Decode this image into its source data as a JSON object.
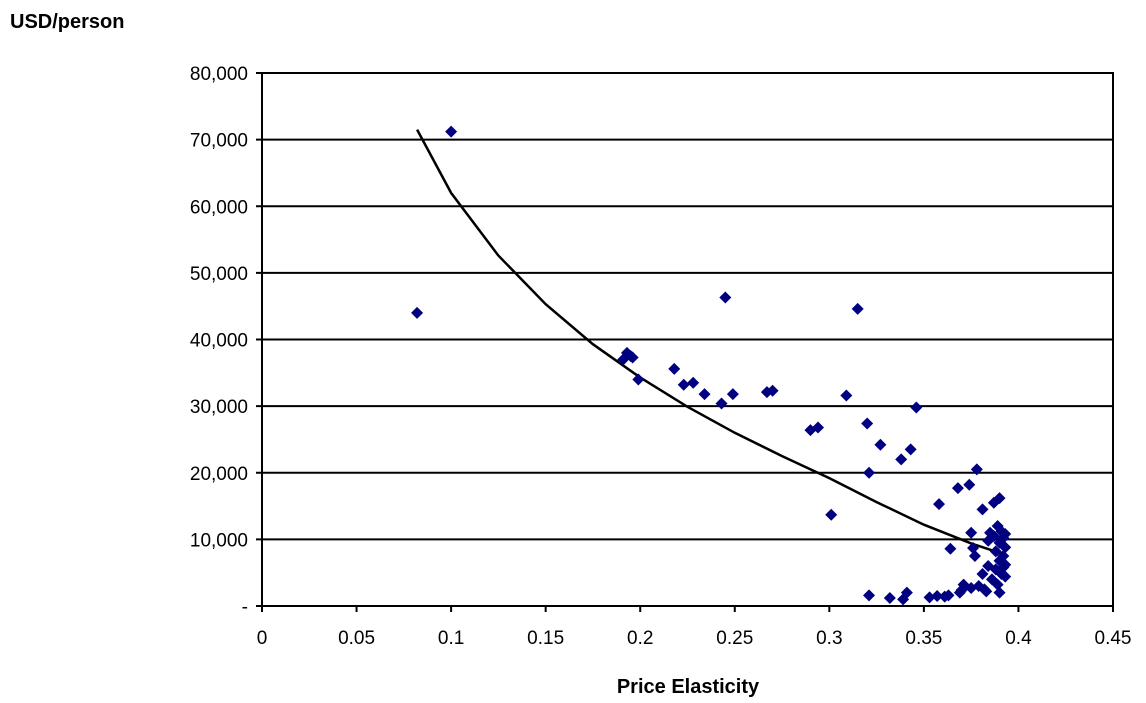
{
  "chart_data": {
    "type": "scatter",
    "title": "",
    "xlabel": "Price Elasticity",
    "ylabel": "USD/person",
    "xlim": [
      0,
      0.45
    ],
    "ylim": [
      0,
      80000
    ],
    "x_ticks": [
      0,
      0.05,
      0.1,
      0.15,
      0.2,
      0.25,
      0.3,
      0.35,
      0.4,
      0.45
    ],
    "x_tick_labels": [
      "0",
      "0.05",
      "0.1",
      "0.15",
      "0.2",
      "0.25",
      "0.3",
      "0.35",
      "0.4",
      "0.45"
    ],
    "y_ticks": [
      0,
      10000,
      20000,
      30000,
      40000,
      50000,
      60000,
      70000,
      80000
    ],
    "y_tick_labels": [
      "-",
      "10,000",
      "20,000",
      "30,000",
      "40,000",
      "50,000",
      "60,000",
      "70,000",
      "80,000"
    ],
    "grid": "horizontal",
    "legend": "none",
    "marker_color": "#000080",
    "trendline_color": "#000000",
    "series": [
      {
        "marker": "diamond",
        "points": [
          [
            0.082,
            44000
          ],
          [
            0.1,
            71200
          ],
          [
            0.191,
            37000
          ],
          [
            0.193,
            38000
          ],
          [
            0.195,
            37500
          ],
          [
            0.196,
            37300
          ],
          [
            0.199,
            34000
          ],
          [
            0.218,
            35600
          ],
          [
            0.223,
            33200
          ],
          [
            0.228,
            33500
          ],
          [
            0.234,
            31800
          ],
          [
            0.243,
            30400
          ],
          [
            0.245,
            46300
          ],
          [
            0.249,
            31800
          ],
          [
            0.267,
            32100
          ],
          [
            0.27,
            32300
          ],
          [
            0.29,
            26400
          ],
          [
            0.294,
            26800
          ],
          [
            0.301,
            13700
          ],
          [
            0.309,
            31600
          ],
          [
            0.315,
            44600
          ],
          [
            0.32,
            27400
          ],
          [
            0.321,
            20000
          ],
          [
            0.321,
            1600
          ],
          [
            0.327,
            24200
          ],
          [
            0.332,
            1200
          ],
          [
            0.338,
            22000
          ],
          [
            0.339,
            1000
          ],
          [
            0.341,
            2000
          ],
          [
            0.343,
            23500
          ],
          [
            0.346,
            29800
          ],
          [
            0.353,
            1300
          ],
          [
            0.357,
            1500
          ],
          [
            0.358,
            15300
          ],
          [
            0.361,
            1400
          ],
          [
            0.363,
            1600
          ],
          [
            0.364,
            8600
          ],
          [
            0.368,
            17700
          ],
          [
            0.369,
            2000
          ],
          [
            0.37,
            2400
          ],
          [
            0.371,
            3200
          ],
          [
            0.374,
            18200
          ],
          [
            0.375,
            2700
          ],
          [
            0.375,
            11000
          ],
          [
            0.376,
            8700
          ],
          [
            0.377,
            7500
          ],
          [
            0.378,
            20500
          ],
          [
            0.379,
            3000
          ],
          [
            0.381,
            14500
          ],
          [
            0.381,
            4800
          ],
          [
            0.382,
            2500
          ],
          [
            0.383,
            2200
          ],
          [
            0.384,
            9800
          ],
          [
            0.384,
            6000
          ],
          [
            0.385,
            11000
          ],
          [
            0.386,
            4000
          ],
          [
            0.387,
            15500
          ],
          [
            0.387,
            10500
          ],
          [
            0.388,
            8200
          ],
          [
            0.388,
            5500
          ],
          [
            0.389,
            12000
          ],
          [
            0.389,
            3200
          ],
          [
            0.39,
            16200
          ],
          [
            0.39,
            9500
          ],
          [
            0.39,
            6800
          ],
          [
            0.39,
            2000
          ],
          [
            0.391,
            11200
          ],
          [
            0.391,
            4800
          ],
          [
            0.392,
            10200
          ],
          [
            0.392,
            7500
          ],
          [
            0.392,
            5800
          ],
          [
            0.393,
            10800
          ],
          [
            0.393,
            8800
          ],
          [
            0.393,
            4400
          ],
          [
            0.393,
            6200
          ]
        ]
      }
    ],
    "trendline": {
      "points": [
        [
          0.082,
          71500
        ],
        [
          0.1,
          62000
        ],
        [
          0.125,
          52600
        ],
        [
          0.15,
          45300
        ],
        [
          0.175,
          39300
        ],
        [
          0.2,
          34300
        ],
        [
          0.225,
          29900
        ],
        [
          0.25,
          26000
        ],
        [
          0.275,
          22500
        ],
        [
          0.3,
          19200
        ],
        [
          0.325,
          15600
        ],
        [
          0.35,
          12200
        ],
        [
          0.375,
          9400
        ],
        [
          0.393,
          7700
        ]
      ]
    }
  }
}
